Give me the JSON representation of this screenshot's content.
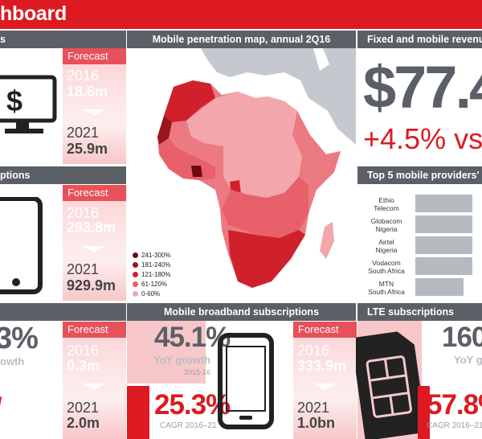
{
  "header": {
    "title": "hboard"
  },
  "sections": {
    "left_top_title": "s",
    "left_mid_title": "ptions",
    "map_title": "Mobile penetration map, annual 2Q16",
    "revenue_title": "Fixed and mobile revenue",
    "providers_title": "Top 5 mobile providers' a",
    "mbb_title": "Mobile broadband subscriptions",
    "lte_title": "LTE subscriptions"
  },
  "forecast_label": "Forecast",
  "fixed_broadband": {
    "y1": "2016",
    "v1": "18.6m",
    "y2": "2021",
    "v2": "25.9m"
  },
  "mobile_subs": {
    "y1": "2016",
    "v1": "293.8m",
    "y2": "2021",
    "v2": "929.9m"
  },
  "left_bottom": {
    "growth_partial": "3%",
    "growth_label": "owth",
    "y1": "2016",
    "v1": "0.3m",
    "y2": "2021",
    "v2": "2.0m"
  },
  "mbb": {
    "growth": "45.1%",
    "growth_label": "YoY growth",
    "growth_years": "2015-16",
    "cagr": "25.3%",
    "cagr_label": "CAGR",
    "cagr_years": "2016–21",
    "y1": "2016",
    "v1": "333.9m",
    "y2": "2021",
    "v2": "1.0bn"
  },
  "lte": {
    "growth": "160",
    "growth_label": "YoY g",
    "cagr": "57.8%",
    "cagr_label": "CAGR",
    "cagr_years": "2016–21"
  },
  "revenue": {
    "amount": "$77.4",
    "change": "+4.5% vs"
  },
  "providers": [
    {
      "name": "Ethio",
      "country": "Telecom",
      "share": 0.85
    },
    {
      "name": "Globacom",
      "country": "Nigeria",
      "share": 0.85
    },
    {
      "name": "Airtel",
      "country": "Nigeria",
      "share": 0.85
    },
    {
      "name": "Vodacom",
      "country": "South Africa",
      "share": 0.85
    },
    {
      "name": "MTN",
      "country": "South Africa",
      "share": 0.72
    }
  ],
  "map_legend": [
    {
      "label": "241-300%",
      "color": "#6e0a12"
    },
    {
      "label": "181-240%",
      "color": "#9a1420"
    },
    {
      "label": "121-180%",
      "color": "#d0202c"
    },
    {
      "label": "61-120%",
      "color": "#e8606a"
    },
    {
      "label": "0-60%",
      "color": "#f3a6ab"
    }
  ],
  "colors": {
    "accent": "#dd1a21",
    "header_grey": "#5b6066",
    "map_sea": "#ffffff",
    "map_land_other": "#c5c9cf"
  }
}
